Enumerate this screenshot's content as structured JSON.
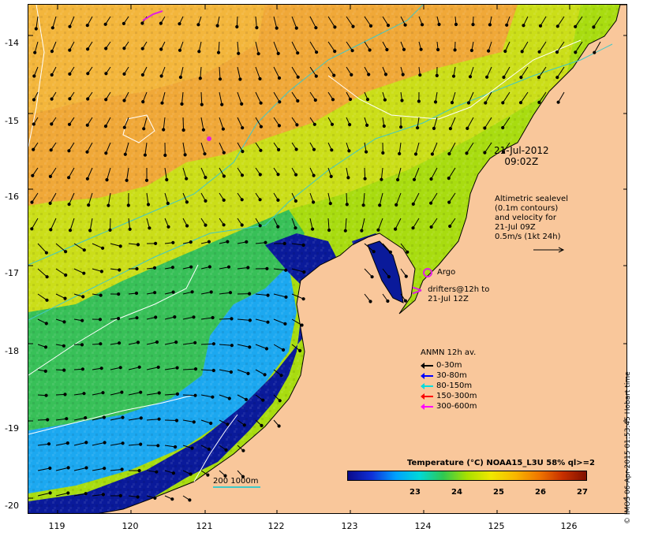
{
  "map": {
    "title_date": "21-Jul-2012",
    "title_time": "09:02Z",
    "y_ticks": [
      "-14",
      "-15",
      "-16",
      "-17",
      "-18",
      "-19",
      "-20"
    ],
    "x_ticks": [
      "119",
      "120",
      "121",
      "122",
      "123",
      "124",
      "125",
      "126"
    ],
    "lat_range": [
      -20.1,
      -13.5
    ],
    "lon_range": [
      118.6,
      126.7
    ]
  },
  "altimetry_note": [
    "Altimetric sealevel",
    "(0.1m contours)",
    "and velocity for",
    "21-Jul 09Z",
    "0.5m/s (1kt 24h)"
  ],
  "argo": {
    "label": "Argo",
    "color": "#e020e0"
  },
  "drifters": {
    "line1": "drifters@12h to",
    "line2": "21-Jul 12Z",
    "color": "#e020e0"
  },
  "anmn": {
    "title": "ANMN 12h av.",
    "items": [
      {
        "label": "0-30m",
        "color": "#000000"
      },
      {
        "label": "30-80m",
        "color": "#0000ff"
      },
      {
        "label": "80-150m",
        "color": "#00dddd"
      },
      {
        "label": "150-300m",
        "color": "#ff0000"
      },
      {
        "label": "300-600m",
        "color": "#ff00ff"
      }
    ]
  },
  "colorbar": {
    "title": "Temperature (°C) NOAA15_L3U 58% ql>=2",
    "ticks": [
      "23",
      "24",
      "25",
      "26",
      "27"
    ],
    "colors": [
      "#0a0a8a",
      "#1030d8",
      "#00a0ff",
      "#00d8d8",
      "#30c850",
      "#a8e000",
      "#f0e800",
      "#f8b800",
      "#f07800",
      "#c83000",
      "#801000"
    ]
  },
  "scale": {
    "label": "200  1000m",
    "color": "#40c8c8"
  },
  "timestamp": "© IMOS 06-Apr-2015 01:53:45 Hobart time",
  "colors": {
    "land": "#f9c79b",
    "warm": "#f0a030",
    "mid": "#b8e000",
    "cool": "#30c060",
    "shelf": "#20a0ff",
    "deep": "#0a1a9a",
    "contour": "#ffffff",
    "isobath": "#40c8c8"
  }
}
